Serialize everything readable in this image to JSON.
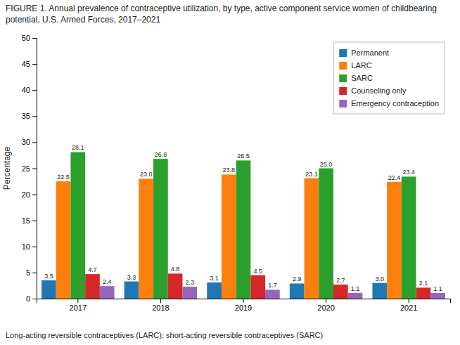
{
  "chart_data": {
    "type": "bar",
    "title": "FIGURE 1. Annual prevalence of contraceptive utilization, by type, active component service women of childbearing potential, U.S. Armed Forces, 2017–2021",
    "ylabel": "Percentage",
    "annotations": [
      "Long-acting reversible contraceptives (LARC); short-acting reversible contraceptives (SARC)"
    ],
    "categories": [
      "2017",
      "2018",
      "2019",
      "2020",
      "2021"
    ],
    "series": [
      {
        "name": "Permanent",
        "values": [
          3.5,
          3.3,
          3.1,
          2.9,
          3.0
        ],
        "value_labels": [
          "3.5",
          "3.3",
          "3.1",
          "2.9",
          "3.0"
        ]
      },
      {
        "name": "LARC",
        "values": [
          22.5,
          23.0,
          23.8,
          23.1,
          22.4
        ],
        "value_labels": [
          "22.5",
          "23.0",
          "23.8",
          "23.1",
          "22.4"
        ]
      },
      {
        "name": "SARC",
        "values": [
          28.1,
          26.8,
          26.5,
          25.0,
          23.4
        ],
        "value_labels": [
          "28.1",
          "26.8",
          "26.5",
          "25.0",
          "23.4"
        ]
      },
      {
        "name": "Counseling only",
        "values": [
          4.7,
          4.8,
          4.5,
          2.7,
          2.1
        ],
        "value_labels": [
          "4.7",
          "4.8",
          "4.5",
          "2.7",
          "2.1"
        ]
      },
      {
        "name": "Emergency contraception",
        "values": [
          2.4,
          2.3,
          1.7,
          1.1,
          1.1
        ],
        "value_labels": [
          "2.4",
          "2.3",
          "1.7",
          "1.1",
          "1.1"
        ]
      }
    ],
    "ylim": [
      0,
      50
    ],
    "yticks": [
      0,
      5,
      10,
      15,
      20,
      25,
      30,
      35,
      40,
      45,
      50
    ],
    "grid": false,
    "legend": "top-right",
    "data_labels": true
  }
}
